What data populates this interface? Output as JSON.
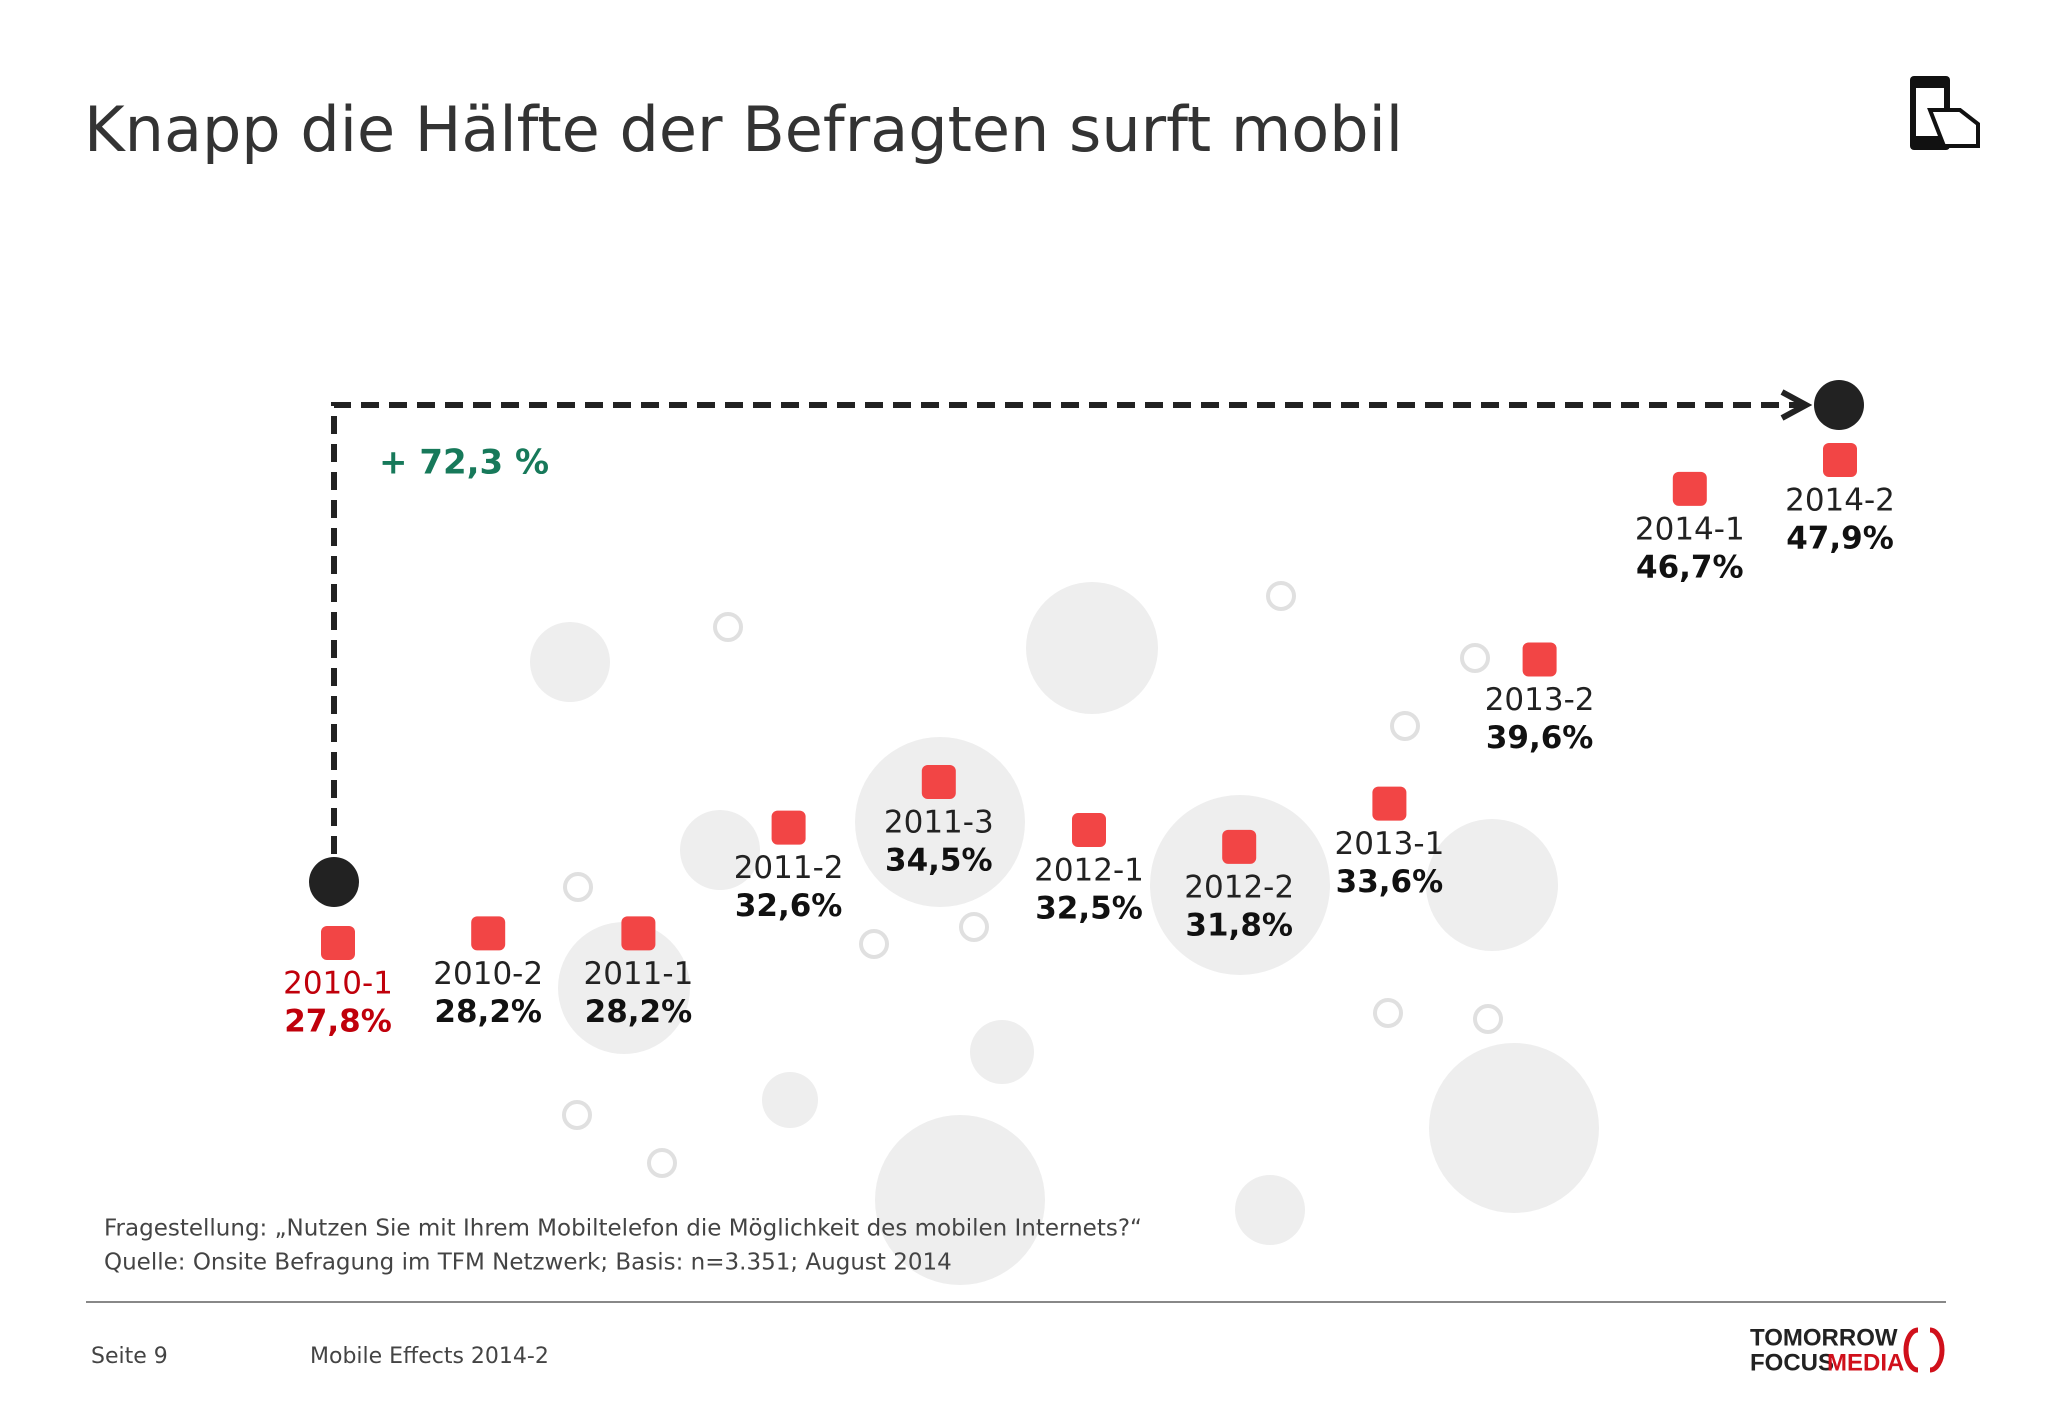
{
  "chart_data": {
    "type": "scatter",
    "title": "Knapp die Hälfte der Befragten surft mobil",
    "categories": [
      "2010-1",
      "2010-2",
      "2011-1",
      "2011-2",
      "2011-3",
      "2012-1",
      "2012-2",
      "2013-1",
      "2013-2",
      "2014-1",
      "2014-2"
    ],
    "values": [
      27.8,
      28.2,
      28.2,
      32.6,
      34.5,
      32.5,
      31.8,
      33.6,
      39.6,
      46.7,
      47.9
    ],
    "value_labels": [
      "27,8%",
      "28,2%",
      "28,2%",
      "32,6%",
      "34,5%",
      "32,5%",
      "31,8%",
      "33,6%",
      "39,6%",
      "46,7%",
      "47,9%"
    ],
    "color": "#f24545",
    "label_colors": [
      "#c0000b",
      "#111111",
      "#111111",
      "#111111",
      "#111111",
      "#111111",
      "#111111",
      "#111111",
      "#111111",
      "#111111",
      "#111111"
    ],
    "annotation": "+ 72,3 %",
    "annotation_color": "#17795a"
  },
  "notes": [
    "Fragestellung: „Nutzen Sie mit Ihrem Mobiltelefon die Möglichkeit des mobilen Internets?“",
    "Quelle: Onsite Befragung im TFM Netzwerk; Basis: n=3.351; August 2014"
  ],
  "footer": {
    "page": "Seite 9",
    "report": "Mobile Effects 2014-2",
    "logo_top": "TOMORROW",
    "logo_left": "FOCUS",
    "logo_right": "MEDIA"
  }
}
